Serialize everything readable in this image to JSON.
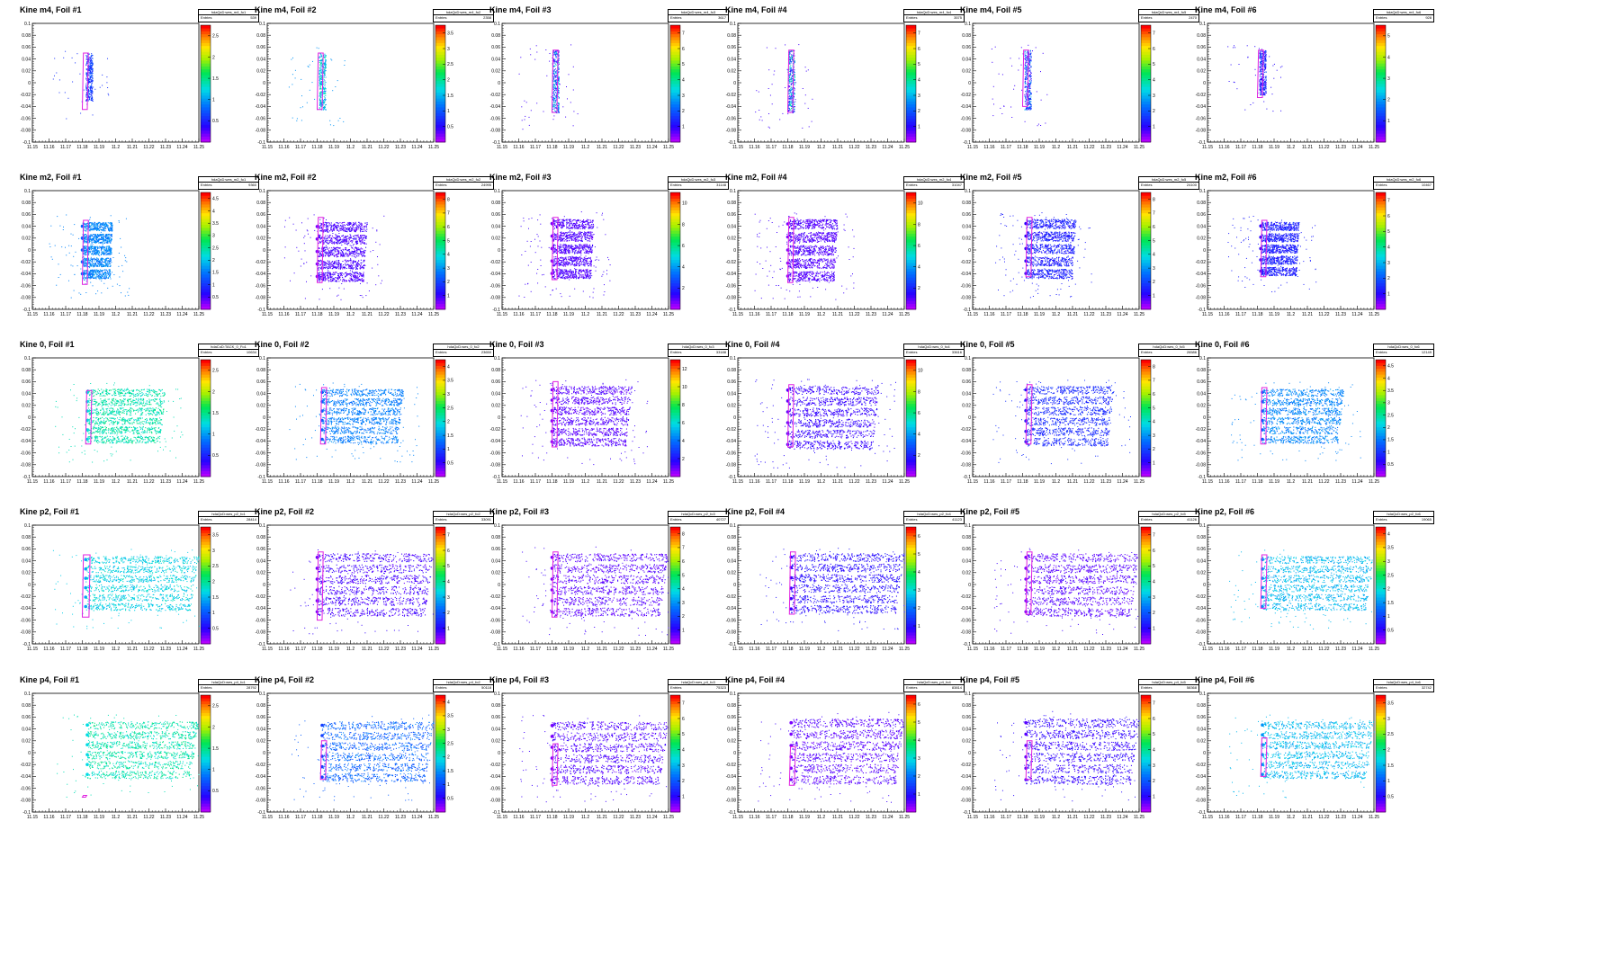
{
  "axis": {
    "x_ticks": [
      "11.15",
      "11.16",
      "11.17",
      "11.18",
      "11.19",
      "11.2",
      "11.21",
      "11.22",
      "11.23",
      "11.24",
      "11.25"
    ],
    "y_ticks": [
      "-0.1",
      "-0.08",
      "-0.06",
      "-0.04",
      "-0.02",
      "0",
      "0.02",
      "0.04",
      "0.06",
      "0.08",
      "0.1"
    ],
    "xlim": [
      11.15,
      11.25
    ],
    "ylim": [
      -0.1,
      0.1
    ]
  },
  "stats_label": "Entries",
  "colors": {
    "cut_contour": "#e020e0",
    "frame": "#000000"
  },
  "chart_data": [
    {
      "type": "heatmap",
      "title": "Kine m4, Foil #1",
      "stats_name": "hdaQcD:wes_m4_fo1",
      "entries": "539",
      "zmax_ticks": [
        "0.5",
        "1",
        "1.5",
        "2",
        "2.5"
      ],
      "level": 0.15,
      "spread": 0.14,
      "left": 11.182,
      "top": 0.05,
      "bottom": -0.03,
      "nband": 0,
      "cut": {
        "x1": 11.18,
        "x2": 11.183,
        "y1": -0.045,
        "y2": 0.05
      }
    },
    {
      "type": "heatmap",
      "title": "Kine m4, Foil #2",
      "stats_name": "hdaQcD:wes_m4_fo2",
      "entries": "2358",
      "zmax_ticks": [
        "0.5",
        "1",
        "1.5",
        "2",
        "2.5",
        "3",
        "3.5"
      ],
      "level": 0.3,
      "spread": 0.23,
      "left": 11.181,
      "top": 0.05,
      "bottom": -0.045,
      "nband": 0,
      "cut": {
        "x1": 11.18,
        "x2": 11.183,
        "y1": -0.045,
        "y2": 0.05
      }
    },
    {
      "type": "heatmap",
      "title": "Kine m4, Foil #3",
      "stats_name": "hdaQcD:wes_m4_fo3",
      "entries": "3617",
      "zmax_ticks": [
        "1",
        "2",
        "3",
        "4",
        "5",
        "6",
        "7"
      ],
      "level": 0.05,
      "spread": 0.45,
      "left": 11.18,
      "top": 0.055,
      "bottom": -0.05,
      "nband": 0,
      "cut": {
        "x1": 11.18,
        "x2": 11.183,
        "y1": -0.05,
        "y2": 0.055
      }
    },
    {
      "type": "heatmap",
      "title": "Kine m4, Foil #4",
      "stats_name": "hdaQcD:wes_m4_fo4",
      "entries": "3575",
      "zmax_ticks": [
        "1",
        "2",
        "3",
        "4",
        "5",
        "6",
        "7"
      ],
      "level": 0.05,
      "spread": 0.5,
      "left": 11.18,
      "top": 0.055,
      "bottom": -0.05,
      "nband": 0,
      "cut": {
        "x1": 11.18,
        "x2": 11.183,
        "y1": -0.05,
        "y2": 0.055
      }
    },
    {
      "type": "heatmap",
      "title": "Kine m4, Foil #5",
      "stats_name": "hdaQcD:wes_m4_fo5",
      "entries": "2470",
      "zmax_ticks": [
        "1",
        "2",
        "3",
        "4",
        "5",
        "6",
        "7"
      ],
      "level": 0.05,
      "spread": 0.36,
      "left": 11.181,
      "top": 0.055,
      "bottom": -0.045,
      "nband": 0,
      "cut": {
        "x1": 11.18,
        "x2": 11.183,
        "y1": -0.04,
        "y2": 0.055
      }
    },
    {
      "type": "heatmap",
      "title": "Kine m4, Foil #6",
      "stats_name": "hdaQcD:wes_m4_fo6",
      "entries": "928",
      "zmax_ticks": [
        "1",
        "2",
        "3",
        "4",
        "5"
      ],
      "level": 0.08,
      "spread": 0.2,
      "left": 11.181,
      "top": 0.055,
      "bottom": -0.02,
      "nband": 0,
      "cut": {
        "x1": 11.18,
        "x2": 11.183,
        "y1": -0.025,
        "y2": 0.055
      }
    },
    {
      "type": "heatmap",
      "title": "Kine m2, Foil #1",
      "stats_name": "hdaQcD:wes_m2_fo1",
      "entries": "9360",
      "zmax_ticks": [
        "0.5",
        "1",
        "1.5",
        "2",
        "2.5",
        "3",
        "3.5",
        "4",
        "4.5"
      ],
      "level": 0.28,
      "spread": 0.1,
      "left": 11.18,
      "right": 11.198,
      "top": 0.05,
      "bottom": -0.05,
      "nband": 5,
      "cut": {
        "x1": 11.18,
        "x2": 11.183,
        "y1": -0.058,
        "y2": 0.05
      }
    },
    {
      "type": "heatmap",
      "title": "Kine m2, Foil #2",
      "stats_name": "hdaQcD:wes_m2_fo2",
      "entries": "24995",
      "zmax_ticks": [
        "1",
        "2",
        "3",
        "4",
        "5",
        "6",
        "7",
        "8"
      ],
      "level": 0.05,
      "spread": 0.08,
      "left": 11.18,
      "right": 11.21,
      "top": 0.05,
      "bottom": -0.055,
      "nband": 5,
      "cut": {
        "x1": 11.18,
        "x2": 11.183,
        "y1": -0.055,
        "y2": 0.055
      }
    },
    {
      "type": "heatmap",
      "title": "Kine m2, Foil #3",
      "stats_name": "hdaQcD:wes_m2_fo3",
      "entries": "31148",
      "zmax_ticks": [
        "2",
        "4",
        "6",
        "8",
        "10"
      ],
      "level": 0.05,
      "spread": 0.07,
      "left": 11.18,
      "right": 11.205,
      "top": 0.055,
      "bottom": -0.05,
      "nband": 5,
      "cut": {
        "x1": 11.18,
        "x2": 11.183,
        "y1": -0.05,
        "y2": 0.055
      }
    },
    {
      "type": "heatmap",
      "title": "Kine m2, Foil #4",
      "stats_name": "hdaQcD:wes_m2_fo4",
      "entries": "31047",
      "zmax_ticks": [
        "2",
        "4",
        "6",
        "8",
        "10"
      ],
      "level": 0.05,
      "spread": 0.07,
      "left": 11.18,
      "right": 11.21,
      "top": 0.055,
      "bottom": -0.055,
      "nband": 5,
      "cut": {
        "x1": 11.18,
        "x2": 11.183,
        "y1": -0.055,
        "y2": 0.055
      }
    },
    {
      "type": "heatmap",
      "title": "Kine m2, Foil #5",
      "stats_name": "hdaQcD:wes_m2_fo5",
      "entries": "24100",
      "zmax_ticks": [
        "1",
        "2",
        "3",
        "4",
        "5",
        "6",
        "7",
        "8"
      ],
      "level": 0.12,
      "spread": 0.1,
      "left": 11.182,
      "right": 11.212,
      "top": 0.055,
      "bottom": -0.05,
      "nband": 5,
      "cut": {
        "x1": 11.182,
        "x2": 11.185,
        "y1": -0.045,
        "y2": 0.055
      }
    },
    {
      "type": "heatmap",
      "title": "Kine m2, Foil #6",
      "stats_name": "hdaQcD:wes_m2_fo6",
      "entries": "10467",
      "zmax_ticks": [
        "1",
        "2",
        "3",
        "4",
        "5",
        "6",
        "7"
      ],
      "level": 0.12,
      "spread": 0.1,
      "left": 11.182,
      "right": 11.205,
      "top": 0.05,
      "bottom": -0.045,
      "nband": 5,
      "cut": {
        "x1": 11.182,
        "x2": 11.185,
        "y1": -0.045,
        "y2": 0.05
      }
    },
    {
      "type": "heatmap",
      "title": "Kine 0, Foil #1",
      "stats_name": "hdaCoD:TACK_0_Fo1",
      "entries": "10634",
      "zmax_ticks": [
        "0.5",
        "1",
        "1.5",
        "2",
        "2.5"
      ],
      "level": 0.45,
      "spread": 0.12,
      "left": 11.183,
      "right": 11.23,
      "top": 0.05,
      "bottom": -0.045,
      "nband": 6,
      "cut": {
        "x1": 11.182,
        "x2": 11.185,
        "y1": -0.045,
        "y2": 0.045
      }
    },
    {
      "type": "heatmap",
      "title": "Kine 0, Foil #2",
      "stats_name": "hdaQcD:wes_0_fo2",
      "entries": "23650",
      "zmax_ticks": [
        "0.5",
        "1",
        "1.5",
        "2",
        "2.5",
        "3",
        "3.5",
        "4"
      ],
      "level": 0.28,
      "spread": 0.08,
      "left": 11.183,
      "right": 11.232,
      "top": 0.05,
      "bottom": -0.045,
      "nband": 6,
      "cut": {
        "x1": 11.182,
        "x2": 11.185,
        "y1": -0.045,
        "y2": 0.05
      }
    },
    {
      "type": "heatmap",
      "title": "Kine 0, Foil #3",
      "stats_name": "hdaQcD:wes_0_fo3",
      "entries": "33188",
      "zmax_ticks": [
        "2",
        "4",
        "6",
        "8",
        "10",
        "12"
      ],
      "level": 0.05,
      "spread": 0.06,
      "left": 11.18,
      "right": 11.228,
      "top": 0.055,
      "bottom": -0.05,
      "nband": 6,
      "cut": {
        "x1": 11.18,
        "x2": 11.183,
        "y1": -0.05,
        "y2": 0.06
      }
    },
    {
      "type": "heatmap",
      "title": "Kine 0, Foil #4",
      "stats_name": "hdaQcD:wes_0_fo4",
      "entries": "33616",
      "zmax_ticks": [
        "2",
        "4",
        "6",
        "8",
        "10"
      ],
      "level": 0.08,
      "spread": 0.06,
      "left": 11.18,
      "right": 11.235,
      "top": 0.055,
      "bottom": -0.055,
      "nband": 6,
      "cut": {
        "x1": 11.18,
        "x2": 11.183,
        "y1": -0.05,
        "y2": 0.055
      }
    },
    {
      "type": "heatmap",
      "title": "Kine 0, Foil #5",
      "stats_name": "hdaQcD:wes_0_fo5",
      "entries": "26586",
      "zmax_ticks": [
        "1",
        "2",
        "3",
        "4",
        "5",
        "6",
        "7",
        "8"
      ],
      "level": 0.15,
      "spread": 0.08,
      "left": 11.182,
      "right": 11.235,
      "top": 0.055,
      "bottom": -0.05,
      "nband": 6,
      "cut": {
        "x1": 11.182,
        "x2": 11.185,
        "y1": -0.045,
        "y2": 0.055
      }
    },
    {
      "type": "heatmap",
      "title": "Kine 0, Foil #6",
      "stats_name": "hdaQcD:wes_0_fo6",
      "entries": "12149",
      "zmax_ticks": [
        "0.5",
        "1",
        "1.5",
        "2",
        "2.5",
        "3",
        "3.5",
        "4",
        "4.5"
      ],
      "level": 0.28,
      "spread": 0.1,
      "left": 11.183,
      "right": 11.232,
      "top": 0.05,
      "bottom": -0.045,
      "nband": 6,
      "cut": {
        "x1": 11.182,
        "x2": 11.185,
        "y1": -0.045,
        "y2": 0.05
      }
    },
    {
      "type": "heatmap",
      "title": "Kine p2, Foil #1",
      "stats_name": "hdaQcD:wes_p2_fo1",
      "entries": "28414",
      "zmax_ticks": [
        "0.5",
        "1",
        "1.5",
        "2",
        "2.5",
        "3",
        "3.5"
      ],
      "level": 0.38,
      "spread": 0.12,
      "left": 11.182,
      "right": 11.25,
      "top": 0.05,
      "bottom": -0.045,
      "nband": 6,
      "cut": {
        "x1": 11.18,
        "x2": 11.184,
        "y1": -0.055,
        "y2": 0.05
      }
    },
    {
      "type": "heatmap",
      "title": "Kine p2, Foil #2",
      "stats_name": "hdaQcD:wes_p2_fo2",
      "entries": "33091",
      "zmax_ticks": [
        "1",
        "2",
        "3",
        "4",
        "5",
        "6",
        "7"
      ],
      "level": 0.06,
      "spread": 0.07,
      "left": 11.18,
      "right": 11.25,
      "top": 0.055,
      "bottom": -0.055,
      "nband": 6,
      "cut": {
        "x1": 11.18,
        "x2": 11.183,
        "y1": -0.06,
        "y2": 0.055
      }
    },
    {
      "type": "heatmap",
      "title": "Kine p2, Foil #3",
      "stats_name": "hdaQcD:wes_p2_fo3",
      "entries": "40727",
      "zmax_ticks": [
        "1",
        "2",
        "3",
        "4",
        "5",
        "6",
        "7",
        "8"
      ],
      "level": 0.05,
      "spread": 0.06,
      "left": 11.18,
      "right": 11.25,
      "top": 0.055,
      "bottom": -0.055,
      "nband": 6,
      "cut": {
        "x1": 11.18,
        "x2": 11.183,
        "y1": -0.055,
        "y2": 0.055
      }
    },
    {
      "type": "heatmap",
      "title": "Kine p2, Foil #4",
      "stats_name": "hdaQcD:wes_p2_fo4",
      "entries": "41123",
      "zmax_ticks": [
        "1",
        "2",
        "3",
        "4",
        "5",
        "6"
      ],
      "level": 0.1,
      "spread": 0.07,
      "left": 11.182,
      "right": 11.25,
      "top": 0.055,
      "bottom": -0.05,
      "nband": 6,
      "cut": {
        "x1": 11.181,
        "x2": 11.184,
        "y1": -0.05,
        "y2": 0.055
      }
    },
    {
      "type": "heatmap",
      "title": "Kine p2, Foil #5",
      "stats_name": "hdaQcD:wes_p2_fo5",
      "entries": "41126",
      "zmax_ticks": [
        "1",
        "2",
        "3",
        "4",
        "5",
        "6",
        "7"
      ],
      "level": 0.05,
      "spread": 0.06,
      "left": 11.182,
      "right": 11.25,
      "top": 0.055,
      "bottom": -0.055,
      "nband": 6,
      "cut": {
        "x1": 11.182,
        "x2": 11.185,
        "y1": -0.05,
        "y2": 0.055
      }
    },
    {
      "type": "heatmap",
      "title": "Kine p2, Foil #6",
      "stats_name": "hdaQcD:wes_p2_fo6",
      "entries": "19065",
      "zmax_ticks": [
        "0.5",
        "1",
        "1.5",
        "2",
        "2.5",
        "3",
        "3.5",
        "4"
      ],
      "level": 0.35,
      "spread": 0.1,
      "left": 11.183,
      "right": 11.25,
      "top": 0.05,
      "bottom": -0.045,
      "nband": 6,
      "cut": {
        "x1": 11.182,
        "x2": 11.185,
        "y1": -0.04,
        "y2": 0.05
      }
    },
    {
      "type": "heatmap",
      "title": "Kine p4, Foil #1",
      "stats_name": "hdaQcD:wes_p4_fo1",
      "entries": "28792",
      "zmax_ticks": [
        "0.5",
        "1",
        "1.5",
        "2",
        "2.5"
      ],
      "level": 0.45,
      "spread": 0.12,
      "left": 11.183,
      "right": 11.25,
      "top": 0.055,
      "bottom": -0.045,
      "nband": 6,
      "cut": {
        "x1": 11.18,
        "x2": 11.182,
        "y1": -0.075,
        "y2": -0.072
      }
    },
    {
      "type": "heatmap",
      "title": "Kine p4, Foil #2",
      "stats_name": "hdaQcD:wes_p4_fo2",
      "entries": "50118",
      "zmax_ticks": [
        "0.5",
        "1",
        "1.5",
        "2",
        "2.5",
        "3",
        "3.5",
        "4"
      ],
      "level": 0.22,
      "spread": 0.12,
      "left": 11.183,
      "right": 11.25,
      "top": 0.055,
      "bottom": -0.05,
      "nband": 6,
      "cut": {
        "x1": 11.182,
        "x2": 11.185,
        "y1": -0.045,
        "y2": 0.02
      }
    },
    {
      "type": "heatmap",
      "title": "Kine p4, Foil #3",
      "stats_name": "hdaQcD:wes_p4_fo3",
      "entries": "75323",
      "zmax_ticks": [
        "1",
        "2",
        "3",
        "4",
        "5",
        "6",
        "7"
      ],
      "level": 0.05,
      "spread": 0.07,
      "left": 11.18,
      "right": 11.25,
      "top": 0.055,
      "bottom": -0.055,
      "nband": 6,
      "cut": {
        "x1": 11.18,
        "x2": 11.183,
        "y1": -0.055,
        "y2": 0.015
      }
    },
    {
      "type": "heatmap",
      "title": "Kine p4, Foil #4",
      "stats_name": "hdaQcD:wes_p4_fo4",
      "entries": "83814",
      "zmax_ticks": [
        "1",
        "2",
        "3",
        "4",
        "5",
        "6"
      ],
      "level": 0.05,
      "spread": 0.06,
      "left": 11.182,
      "right": 11.25,
      "top": 0.06,
      "bottom": -0.055,
      "nband": 6,
      "cut": {
        "x1": 11.181,
        "x2": 11.184,
        "y1": -0.055,
        "y2": 0.01
      }
    },
    {
      "type": "heatmap",
      "title": "Kine p4, Foil #5",
      "stats_name": "hdaQcD:wes_p4_fo5",
      "entries": "58368",
      "zmax_ticks": [
        "1",
        "2",
        "3",
        "4",
        "5",
        "6",
        "7"
      ],
      "level": 0.08,
      "spread": 0.07,
      "left": 11.182,
      "right": 11.25,
      "top": 0.06,
      "bottom": -0.055,
      "nband": 6,
      "cut": {
        "x1": 11.182,
        "x2": 11.185,
        "y1": -0.045,
        "y2": 0.02
      }
    },
    {
      "type": "heatmap",
      "title": "Kine p4, Foil #6",
      "stats_name": "hdaQcD:wes_p4_fo6",
      "entries": "32742",
      "zmax_ticks": [
        "0.5",
        "1",
        "1.5",
        "2",
        "2.5",
        "3",
        "3.5"
      ],
      "level": 0.35,
      "spread": 0.1,
      "left": 11.183,
      "right": 11.25,
      "top": 0.055,
      "bottom": -0.045,
      "nband": 6,
      "cut": {
        "x1": 11.182,
        "x2": 11.185,
        "y1": -0.04,
        "y2": 0.025
      }
    }
  ]
}
